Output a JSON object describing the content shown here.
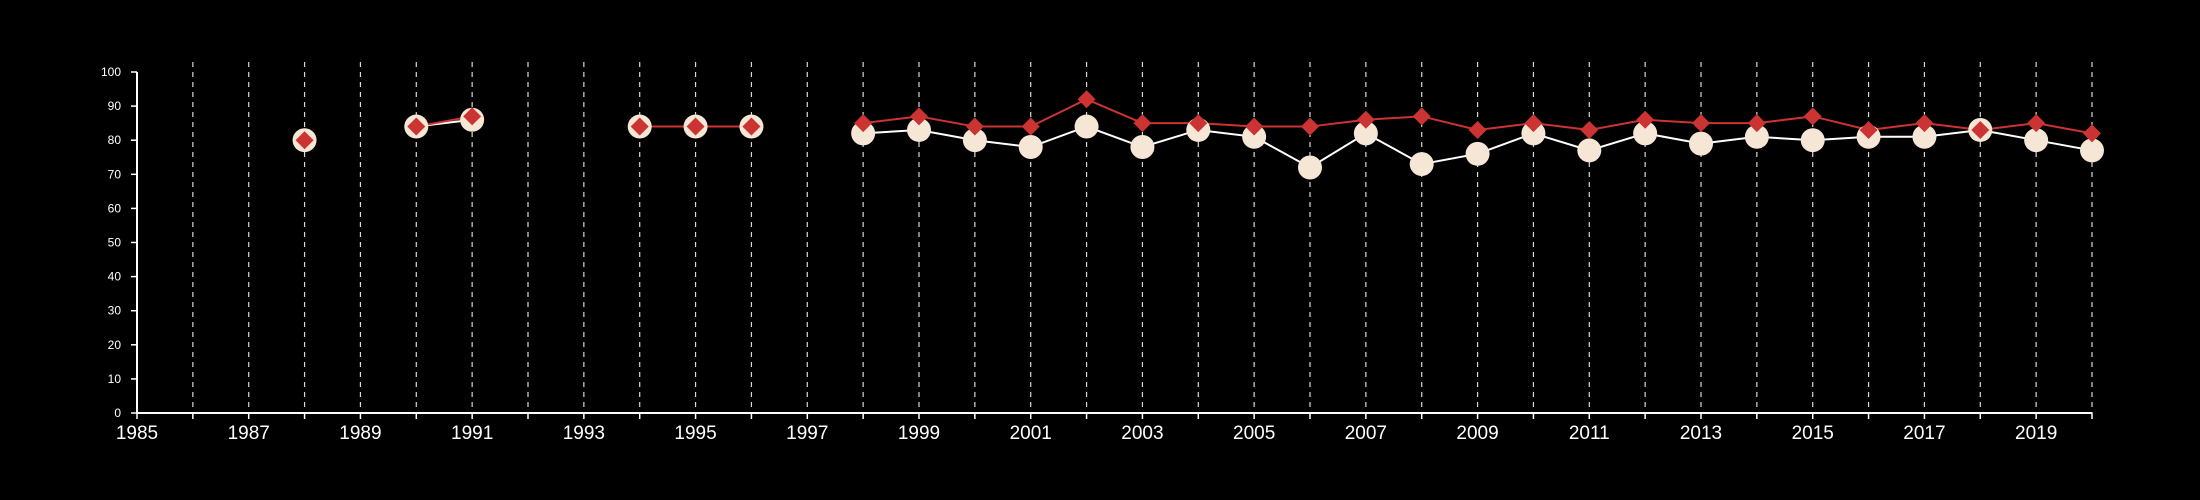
{
  "colors": {
    "background": "#000000",
    "axis": "#ffffff",
    "grid": "#d9d9d9",
    "series_white_line": "#ffffff",
    "series_white_marker": "#f5e6d6",
    "series_red": "#cc3333"
  },
  "chart_data": {
    "type": "line",
    "title": "",
    "xlabel": "",
    "ylabel": "",
    "xlim": [
      1985,
      2020
    ],
    "ylim": [
      0,
      100
    ],
    "x_ticks": [
      1985,
      1987,
      1989,
      1991,
      1993,
      1995,
      1997,
      1999,
      2001,
      2003,
      2005,
      2007,
      2009,
      2011,
      2013,
      2015,
      2017,
      2019
    ],
    "y_ticks": [
      0,
      10,
      20,
      30,
      40,
      50,
      60,
      70,
      80,
      90,
      100
    ],
    "grid": "vertical dashed lines at every year",
    "legend": "none",
    "series": [
      {
        "marker": "circle",
        "color": "#f5e6d6",
        "line_color": "#ffffff",
        "points": [
          [
            1988,
            80
          ],
          [
            1990,
            84
          ],
          [
            1991,
            86
          ],
          [
            1994,
            84
          ],
          [
            1995,
            84
          ],
          [
            1996,
            84
          ],
          [
            1998,
            82
          ],
          [
            1999,
            83
          ],
          [
            2000,
            80
          ],
          [
            2001,
            78
          ],
          [
            2002,
            84
          ],
          [
            2003,
            78
          ],
          [
            2004,
            83
          ],
          [
            2005,
            81
          ],
          [
            2006,
            72
          ],
          [
            2007,
            82
          ],
          [
            2008,
            73
          ],
          [
            2009,
            76
          ],
          [
            2010,
            82
          ],
          [
            2011,
            77
          ],
          [
            2012,
            82
          ],
          [
            2013,
            79
          ],
          [
            2014,
            81
          ],
          [
            2015,
            80
          ],
          [
            2016,
            81
          ],
          [
            2017,
            81
          ],
          [
            2018,
            83
          ],
          [
            2019,
            80
          ],
          [
            2020,
            77
          ]
        ]
      },
      {
        "marker": "diamond",
        "color": "#cc3333",
        "line_color": "#cc3333",
        "points": [
          [
            1988,
            80
          ],
          [
            1990,
            84
          ],
          [
            1991,
            87
          ],
          [
            1994,
            84
          ],
          [
            1995,
            84
          ],
          [
            1996,
            84
          ],
          [
            1998,
            85
          ],
          [
            1999,
            87
          ],
          [
            2000,
            84
          ],
          [
            2001,
            84
          ],
          [
            2002,
            92
          ],
          [
            2003,
            85
          ],
          [
            2004,
            85
          ],
          [
            2005,
            84
          ],
          [
            2006,
            84
          ],
          [
            2007,
            86
          ],
          [
            2008,
            87
          ],
          [
            2009,
            83
          ],
          [
            2010,
            85
          ],
          [
            2011,
            83
          ],
          [
            2012,
            86
          ],
          [
            2013,
            85
          ],
          [
            2014,
            85
          ],
          [
            2015,
            87
          ],
          [
            2016,
            83
          ],
          [
            2017,
            85
          ],
          [
            2018,
            83
          ],
          [
            2019,
            85
          ],
          [
            2020,
            82
          ]
        ]
      }
    ]
  }
}
